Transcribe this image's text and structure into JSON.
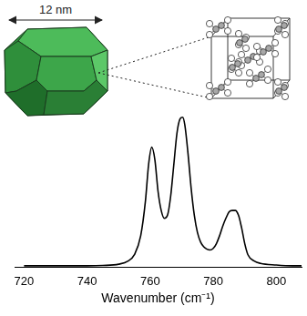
{
  "chart_data": {
    "type": "line",
    "x_label": "Wavenumber (cm⁻¹)",
    "annotations": [
      "12 nm"
    ],
    "x": [
      720,
      730,
      740,
      745,
      750,
      753,
      755,
      757,
      758.5,
      759.5,
      760.5,
      761.5,
      762.5,
      763.5,
      764.5,
      765.5,
      766.5,
      767.5,
      768.5,
      769.5,
      770.3,
      771,
      772,
      773,
      774,
      775,
      776,
      777,
      778,
      779,
      780,
      781,
      782,
      783,
      784,
      785,
      786,
      787,
      788,
      789,
      790,
      791,
      793,
      795,
      800,
      805,
      808
    ],
    "values": [
      0.01,
      0.01,
      0.01,
      0.012,
      0.02,
      0.04,
      0.08,
      0.2,
      0.42,
      0.65,
      0.76,
      0.68,
      0.48,
      0.36,
      0.31,
      0.33,
      0.45,
      0.65,
      0.85,
      0.94,
      0.95,
      0.9,
      0.72,
      0.5,
      0.33,
      0.22,
      0.16,
      0.13,
      0.115,
      0.11,
      0.12,
      0.15,
      0.2,
      0.26,
      0.31,
      0.35,
      0.36,
      0.36,
      0.33,
      0.25,
      0.15,
      0.08,
      0.04,
      0.025,
      0.015,
      0.01,
      0.01
    ],
    "color": "#000000",
    "xlim": [
      717,
      808
    ],
    "xticks": [
      720,
      740,
      760,
      780,
      800
    ],
    "ylim": [
      0,
      1
    ],
    "grid": false,
    "tick_labels": "x"
  }
}
